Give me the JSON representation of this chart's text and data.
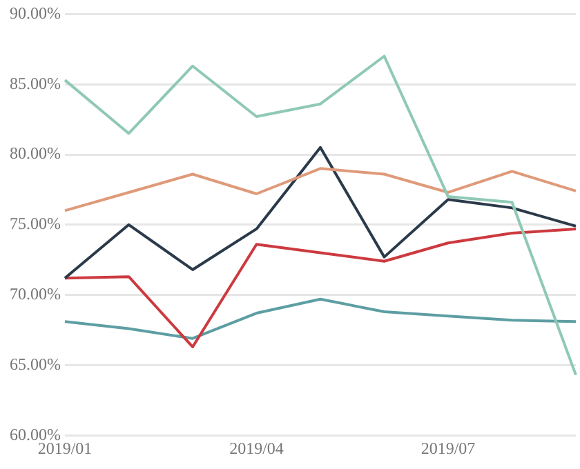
{
  "chart_data": {
    "type": "line",
    "categories": [
      "2019/01",
      null,
      null,
      "2019/04",
      null,
      null,
      "2019/07",
      null,
      null
    ],
    "series": [
      {
        "color": "#8fc9b5",
        "values": [
          85.3,
          81.5,
          86.3,
          82.7,
          83.6,
          87.0,
          77.0,
          76.6,
          64.3
        ]
      },
      {
        "color": "#df9a7a",
        "values": [
          76.0,
          77.3,
          78.6,
          77.2,
          79.0,
          78.6,
          77.3,
          78.8,
          77.4
        ]
      },
      {
        "color": "#2b3a4a",
        "values": [
          71.2,
          75.0,
          71.8,
          74.7,
          80.5,
          72.7,
          76.8,
          76.2,
          74.9
        ]
      },
      {
        "color": "#cc3a3f",
        "values": [
          71.2,
          71.3,
          66.3,
          73.6,
          73.0,
          72.4,
          73.7,
          74.4,
          74.7
        ]
      },
      {
        "color": "#5d9ea3",
        "values": [
          68.1,
          67.6,
          66.9,
          68.7,
          69.7,
          68.8,
          68.5,
          68.2,
          68.1
        ]
      }
    ],
    "ylim": [
      60,
      90
    ],
    "yticks": [
      {
        "value": 60,
        "label": "60.00%"
      },
      {
        "value": 65,
        "label": "65.00%"
      },
      {
        "value": 70,
        "label": "70.00%"
      },
      {
        "value": 75,
        "label": "75.00%"
      },
      {
        "value": 80,
        "label": "80.00%"
      },
      {
        "value": 85,
        "label": "85.00%"
      },
      {
        "value": 90,
        "label": "90.00%"
      }
    ],
    "grid": "y",
    "marker": "none",
    "line_style": "solid"
  }
}
